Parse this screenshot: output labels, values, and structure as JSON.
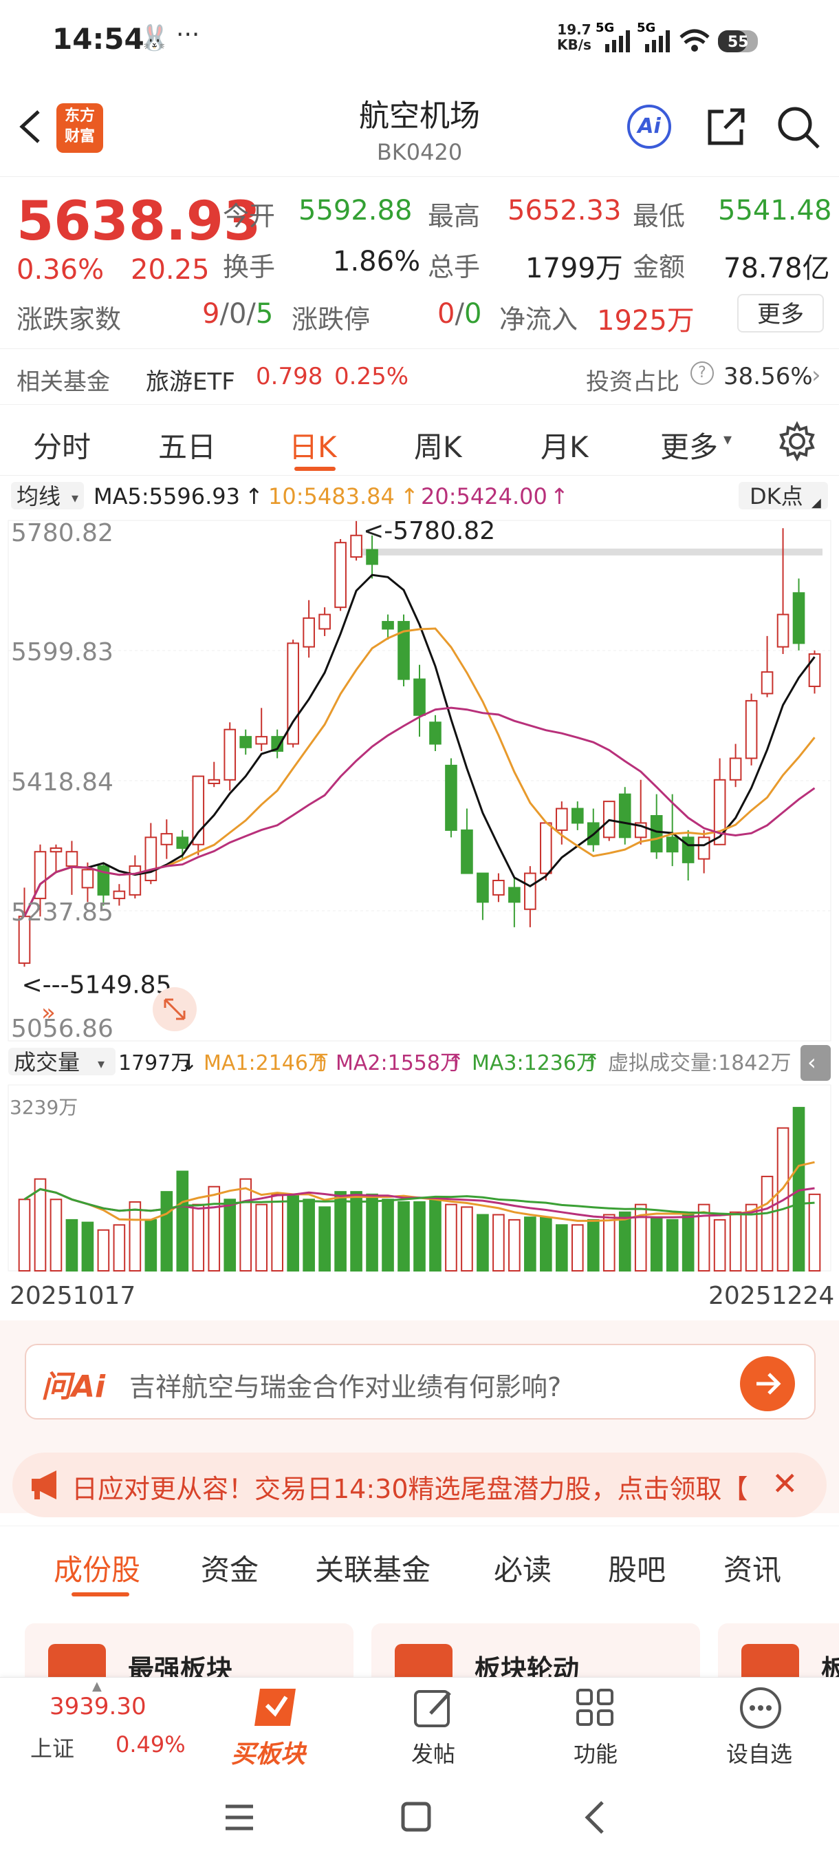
{
  "status": {
    "time": "14:54",
    "more": "···",
    "net_rate": "19.7",
    "net_unit": "KB/s",
    "sig1": "5G",
    "sig2": "5G",
    "battery": "55"
  },
  "header": {
    "title": "航空机场",
    "code": "BK0420",
    "logo_top": "东方",
    "logo_bottom": "财富",
    "ai_label": "Ai"
  },
  "quote": {
    "price": "5638.93",
    "change_pct": "0.36%",
    "change_val": "20.25",
    "labels": {
      "open": "今开",
      "high": "最高",
      "low": "最低",
      "turnover": "换手",
      "volume": "总手",
      "amount": "金额",
      "updown": "涨跌家数",
      "limit": "涨跌停",
      "netflow": "净流入",
      "more": "更多"
    },
    "open": "5592.88",
    "high": "5652.33",
    "low": "5541.48",
    "turnover": "1.86%",
    "volume": "1799万",
    "amount": "78.78亿",
    "updown_up": "9",
    "updown_flat": "0",
    "updown_down": "5",
    "updown_sep": "/",
    "limit_up": "0",
    "limit_down": "0",
    "netflow": "1925万"
  },
  "fund": {
    "label": "相关基金",
    "name": "旅游ETF",
    "price": "0.798",
    "pct": "0.25%",
    "ratio_label": "投资占比",
    "ratio": "38.56%"
  },
  "tabs": [
    "分时",
    "五日",
    "日K",
    "周K",
    "月K",
    "更多"
  ],
  "active_tab": "日K",
  "ma": {
    "label": "均线",
    "ma5": "MA5:5596.93",
    "ma10": "10:5483.84",
    "ma20": "20:5424.00",
    "dk": "DK点"
  },
  "vol_ma": {
    "label": "成交量",
    "vol": "1797万",
    "ma1": "MA1:2146万",
    "ma2": "MA2:1558万",
    "ma3": "MA3:1236万",
    "virtual": "虚拟成交量:1842万",
    "max": "3239万"
  },
  "chart_data": {
    "type": "candlestick",
    "y_ticks": [
      "5780.82",
      "5599.83",
      "5418.84",
      "5237.85",
      "5056.86"
    ],
    "max_label": "<-5780.82",
    "min_label": "<---5149.85",
    "start_date": "20251017",
    "end_date": "20251224",
    "colors": {
      "up": "#c8312c",
      "down": "#3ba035",
      "ma5": "#111111",
      "ma10": "#e89a2c",
      "ma20": "#b8307a"
    },
    "candles": [
      [
        5165,
        5230,
        5160,
        5270
      ],
      [
        5255,
        5320,
        5230,
        5330
      ],
      [
        5320,
        5325,
        5290,
        5330
      ],
      [
        5300,
        5320,
        5260,
        5335
      ],
      [
        5270,
        5295,
        5250,
        5305
      ],
      [
        5300,
        5260,
        5245,
        5305
      ],
      [
        5255,
        5265,
        5245,
        5275
      ],
      [
        5260,
        5300,
        5255,
        5315
      ],
      [
        5280,
        5340,
        5275,
        5360
      ],
      [
        5330,
        5345,
        5310,
        5365
      ],
      [
        5340,
        5325,
        5310,
        5350
      ],
      [
        5330,
        5425,
        5315,
        5425
      ],
      [
        5415,
        5420,
        5410,
        5445
      ],
      [
        5420,
        5490,
        5405,
        5500
      ],
      [
        5480,
        5465,
        5455,
        5490
      ],
      [
        5470,
        5480,
        5460,
        5520
      ],
      [
        5480,
        5460,
        5450,
        5490
      ],
      [
        5470,
        5610,
        5465,
        5615
      ],
      [
        5605,
        5645,
        5590,
        5670
      ],
      [
        5630,
        5650,
        5620,
        5660
      ],
      [
        5660,
        5750,
        5655,
        5755
      ],
      [
        5730,
        5760,
        5725,
        5780
      ],
      [
        5740,
        5720,
        5700,
        5760
      ],
      [
        5640,
        5630,
        5615,
        5650
      ],
      [
        5640,
        5560,
        5550,
        5650
      ],
      [
        5560,
        5510,
        5480,
        5580
      ],
      [
        5500,
        5470,
        5460,
        5510
      ],
      [
        5440,
        5350,
        5340,
        5450
      ],
      [
        5350,
        5290,
        5290,
        5380
      ],
      [
        5290,
        5250,
        5225,
        5290
      ],
      [
        5260,
        5280,
        5250,
        5290
      ],
      [
        5270,
        5250,
        5215,
        5285
      ],
      [
        5240,
        5290,
        5215,
        5300
      ],
      [
        5290,
        5360,
        5280,
        5360
      ],
      [
        5350,
        5380,
        5330,
        5390
      ],
      [
        5380,
        5360,
        5350,
        5390
      ],
      [
        5360,
        5330,
        5320,
        5380
      ],
      [
        5340,
        5390,
        5335,
        5390
      ],
      [
        5400,
        5340,
        5330,
        5410
      ],
      [
        5340,
        5360,
        5330,
        5420
      ],
      [
        5370,
        5320,
        5310,
        5400
      ],
      [
        5340,
        5320,
        5300,
        5400
      ],
      [
        5340,
        5305,
        5280,
        5350
      ],
      [
        5310,
        5340,
        5290,
        5350
      ],
      [
        5330,
        5420,
        5330,
        5450
      ],
      [
        5420,
        5450,
        5410,
        5470
      ],
      [
        5450,
        5530,
        5440,
        5540
      ],
      [
        5540,
        5570,
        5535,
        5620
      ],
      [
        5605,
        5650,
        5595,
        5770
      ],
      [
        5680,
        5610,
        5600,
        5700
      ],
      [
        5550,
        5595,
        5540,
        5600
      ]
    ],
    "volumes": [
      [
        1400,
        1
      ],
      [
        1800,
        1
      ],
      [
        1400,
        1
      ],
      [
        1000,
        0
      ],
      [
        950,
        0
      ],
      [
        800,
        1
      ],
      [
        900,
        1
      ],
      [
        1350,
        1
      ],
      [
        1000,
        0
      ],
      [
        1550,
        0
      ],
      [
        1950,
        0
      ],
      [
        1300,
        1
      ],
      [
        1650,
        1
      ],
      [
        1400,
        0
      ],
      [
        1800,
        1
      ],
      [
        1300,
        1
      ],
      [
        1500,
        1
      ],
      [
        1500,
        0
      ],
      [
        1400,
        0
      ],
      [
        1250,
        0
      ],
      [
        1550,
        0
      ],
      [
        1550,
        0
      ],
      [
        1500,
        0
      ],
      [
        1400,
        0
      ],
      [
        1350,
        0
      ],
      [
        1350,
        0
      ],
      [
        1400,
        0
      ],
      [
        1300,
        1
      ],
      [
        1250,
        1
      ],
      [
        1100,
        0
      ],
      [
        1100,
        1
      ],
      [
        1000,
        1
      ],
      [
        1050,
        0
      ],
      [
        1050,
        0
      ],
      [
        900,
        0
      ],
      [
        900,
        1
      ],
      [
        1000,
        0
      ],
      [
        1100,
        1
      ],
      [
        1150,
        0
      ],
      [
        1300,
        1
      ],
      [
        1050,
        0
      ],
      [
        1000,
        0
      ],
      [
        1100,
        0
      ],
      [
        1300,
        1
      ],
      [
        1000,
        1
      ],
      [
        1150,
        1
      ],
      [
        1300,
        1
      ],
      [
        1850,
        1
      ],
      [
        2800,
        1
      ],
      [
        3200,
        0
      ],
      [
        1500,
        1
      ]
    ]
  },
  "suggest": {
    "icon_text": "问Ai",
    "text": "吉祥航空与瑞金合作对业绩有何影响?"
  },
  "banner": {
    "text": "日应对更从容！交易日14:30精选尾盘潜力股，点击领取【"
  },
  "subtabs": [
    "成份股",
    "资金",
    "关联基金",
    "必读",
    "股吧",
    "资讯"
  ],
  "cards": [
    "最强板块",
    "板块轮动",
    "板"
  ],
  "bottom": {
    "index_value": "3939.30",
    "index_name": "上证",
    "index_pct": "0.49%",
    "buy": "买板块",
    "post": "发帖",
    "func": "功能",
    "watch": "设自选"
  }
}
